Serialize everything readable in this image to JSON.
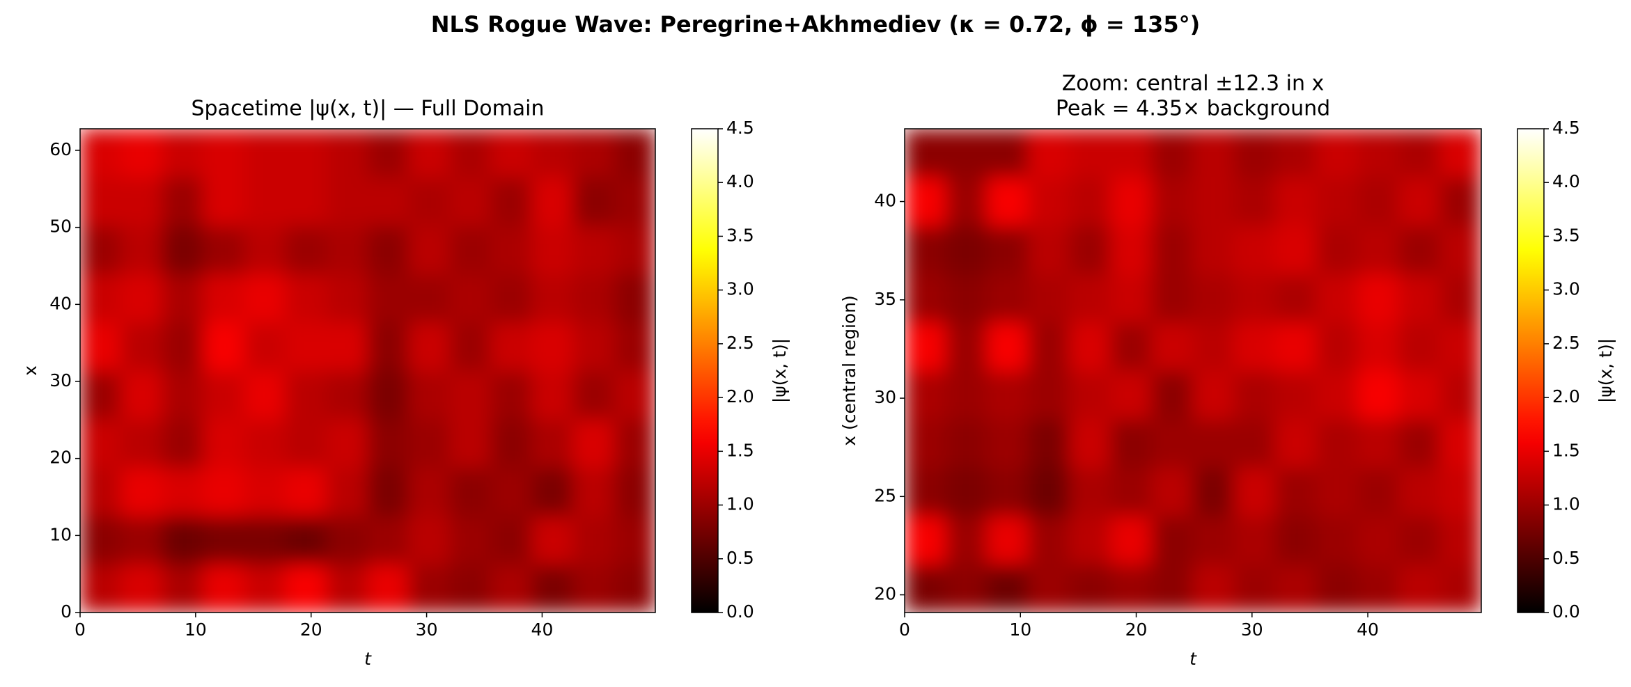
{
  "title": "NLS Rogue Wave: Peregrine+Akhmediev (κ = 0.72, ϕ = 135°)",
  "chart_data": [
    {
      "type": "heatmap",
      "title": [
        "Spacetime |ψ(x, t)| — Full Domain"
      ],
      "xlabel": "t",
      "ylabel": "x",
      "cmap": "hot",
      "xlim": [
        0,
        49.8
      ],
      "ylim": [
        0,
        62.8
      ],
      "xticks": [
        0,
        10,
        20,
        30,
        40
      ],
      "yticks": [
        0,
        10,
        20,
        30,
        40,
        50,
        60
      ],
      "colorbar": {
        "label": "|ψ(x, t)|",
        "lim": [
          0,
          4.5
        ],
        "ticks": [
          {
            "value": 0,
            "label": "0.0"
          },
          0.5,
          {
            "value": 1,
            "label": "1.0"
          },
          1.5,
          {
            "value": 2,
            "label": "2.0"
          },
          2.5,
          {
            "value": 3,
            "label": "3.0"
          },
          3.5,
          {
            "value": 4,
            "label": "4.0"
          },
          4.5
        ]
      },
      "z": [
        [
          1.2,
          1.4,
          1.1,
          1.5,
          1.3,
          1.6,
          1.2,
          1.5,
          1.0,
          0.9,
          1.1,
          0.8,
          1.0,
          0.9
        ],
        [
          0.9,
          1.0,
          0.7,
          0.8,
          0.8,
          0.7,
          0.9,
          1.0,
          1.2,
          1.0,
          0.9,
          1.3,
          1.1,
          1.0
        ],
        [
          1.2,
          1.5,
          1.4,
          1.5,
          1.4,
          1.5,
          1.2,
          0.8,
          1.1,
          0.9,
          1.0,
          0.8,
          1.2,
          0.9
        ],
        [
          1.3,
          1.2,
          1.0,
          1.4,
          1.3,
          1.2,
          1.3,
          0.9,
          1.0,
          1.2,
          0.9,
          1.1,
          1.4,
          1.0
        ],
        [
          1.0,
          1.4,
          1.1,
          1.3,
          1.5,
          1.2,
          1.1,
          0.8,
          1.1,
          1.2,
          1.0,
          1.3,
          1.0,
          1.2
        ],
        [
          1.5,
          1.2,
          1.0,
          1.6,
          1.3,
          1.4,
          1.4,
          0.9,
          1.3,
          1.0,
          1.3,
          1.4,
          1.2,
          1.0
        ],
        [
          1.3,
          1.4,
          1.1,
          1.4,
          1.5,
          1.3,
          1.2,
          1.0,
          1.0,
          1.1,
          1.0,
          1.2,
          1.1,
          0.9
        ],
        [
          1.0,
          1.2,
          0.8,
          1.0,
          1.2,
          1.0,
          1.1,
          0.9,
          1.2,
          1.0,
          1.1,
          1.3,
          1.2,
          1.1
        ],
        [
          1.3,
          1.3,
          1.0,
          1.4,
          1.3,
          1.3,
          1.2,
          1.2,
          1.1,
          1.2,
          1.0,
          1.4,
          0.9,
          1.0
        ],
        [
          1.4,
          1.5,
          1.3,
          1.4,
          1.3,
          1.3,
          1.2,
          1.0,
          1.3,
          1.1,
          1.3,
          1.2,
          1.1,
          0.9
        ]
      ]
    },
    {
      "type": "heatmap",
      "title": [
        "Zoom: central ±12.3 in x",
        "Peak = 4.35× background"
      ],
      "xlabel": "t",
      "ylabel": "x (central region)",
      "cmap": "hot",
      "xlim": [
        0,
        49.8
      ],
      "ylim": [
        19.1,
        43.7
      ],
      "xticks": [
        0,
        10,
        20,
        30,
        40
      ],
      "yticks": [
        20,
        25,
        30,
        35,
        40
      ],
      "colorbar": {
        "label": "|ψ(x, t)|",
        "lim": [
          0,
          4.5
        ],
        "ticks": [
          {
            "value": 0,
            "label": "0.0"
          },
          0.5,
          {
            "value": 1,
            "label": "1.0"
          },
          1.5,
          {
            "value": 2,
            "label": "2.0"
          },
          2.5,
          {
            "value": 3,
            "label": "3.0"
          },
          3.5,
          {
            "value": 4,
            "label": "4.0"
          },
          4.5
        ]
      },
      "z": [
        [
          0.8,
          0.9,
          0.7,
          1.0,
          0.9,
          1.0,
          0.9,
          1.2,
          1.0,
          1.1,
          0.9,
          1.0,
          1.2,
          1.1
        ],
        [
          1.6,
          1.0,
          1.5,
          1.0,
          1.2,
          1.5,
          0.9,
          1.0,
          1.1,
          0.9,
          1.0,
          1.1,
          1.0,
          1.2
        ],
        [
          0.9,
          0.8,
          0.9,
          0.7,
          1.1,
          1.0,
          1.2,
          0.8,
          1.3,
          1.0,
          1.1,
          1.0,
          1.2,
          1.3
        ],
        [
          1.0,
          0.9,
          1.0,
          0.8,
          1.3,
          0.9,
          1.0,
          1.0,
          1.0,
          1.3,
          1.1,
          1.2,
          1.0,
          1.4
        ],
        [
          1.1,
          1.0,
          1.1,
          1.0,
          1.2,
          1.3,
          0.9,
          1.3,
          1.1,
          1.2,
          1.3,
          1.6,
          1.4,
          1.2
        ],
        [
          1.6,
          1.0,
          1.6,
          1.0,
          1.4,
          1.0,
          1.3,
          1.2,
          1.4,
          1.5,
          1.2,
          1.4,
          1.2,
          1.3
        ],
        [
          1.0,
          0.9,
          1.0,
          1.1,
          1.2,
          1.3,
          1.0,
          1.1,
          1.2,
          1.1,
          1.3,
          1.5,
          1.3,
          1.1
        ],
        [
          0.9,
          0.8,
          0.9,
          1.2,
          1.0,
          1.4,
          1.0,
          1.2,
          1.3,
          1.4,
          1.1,
          1.2,
          1.0,
          1.2
        ],
        [
          1.6,
          1.0,
          1.6,
          1.3,
          1.2,
          1.5,
          1.1,
          1.2,
          1.1,
          1.3,
          1.2,
          1.1,
          1.3,
          1.0
        ],
        [
          0.9,
          0.9,
          0.9,
          1.4,
          1.3,
          1.3,
          1.0,
          1.2,
          1.0,
          1.1,
          1.3,
          1.2,
          1.1,
          1.4
        ]
      ]
    }
  ]
}
